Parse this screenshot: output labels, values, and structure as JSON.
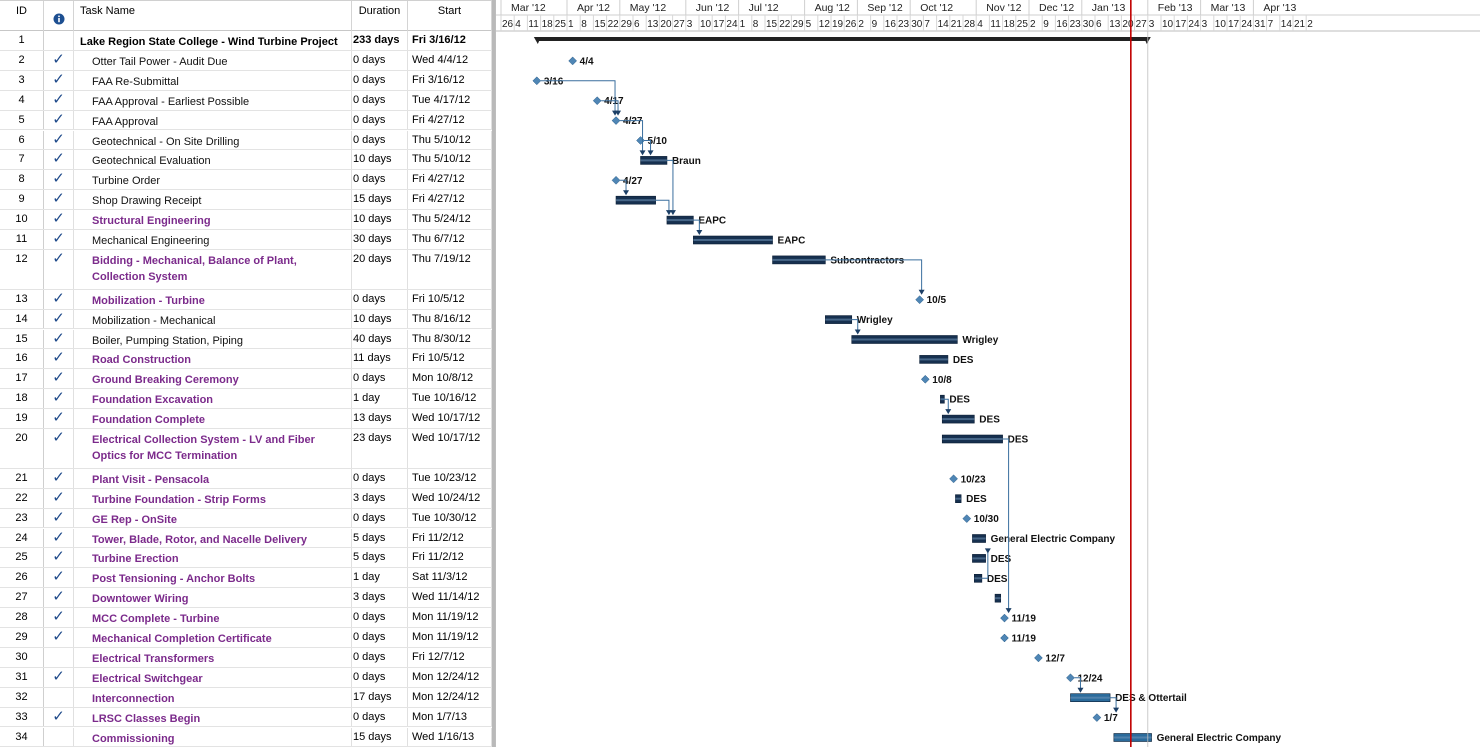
{
  "columns": {
    "id": "ID",
    "indicator_icon": "info-icon",
    "name": "Task Name",
    "duration": "Duration",
    "start": "Start"
  },
  "colors": {
    "bar": "#16304f",
    "bar_light": "#2b6b9b",
    "milestone": "#4f86b5",
    "purple_text": "#7b2a8b",
    "today_line": "#c00000",
    "link": "#3a6f9e"
  },
  "timeline": {
    "today": "2013-01-25",
    "months": [
      {
        "label": "Mar '12",
        "start": "2012-02-26"
      },
      {
        "label": "Apr '12",
        "start": "2012-04-01"
      },
      {
        "label": "May '12",
        "start": "2012-04-29"
      },
      {
        "label": "Jun '12",
        "start": "2012-06-03"
      },
      {
        "label": "Jul '12",
        "start": "2012-07-01"
      },
      {
        "label": "Aug '12",
        "start": "2012-08-05"
      },
      {
        "label": "Sep '12",
        "start": "2012-09-02"
      },
      {
        "label": "Oct '12",
        "start": "2012-09-30"
      },
      {
        "label": "Nov '12",
        "start": "2012-11-04"
      },
      {
        "label": "Dec '12",
        "start": "2012-12-02"
      },
      {
        "label": "Jan '13",
        "start": "2012-12-30"
      },
      {
        "label": "Feb '13",
        "start": "2013-02-03"
      },
      {
        "label": "Mar '13",
        "start": "2013-03-03"
      },
      {
        "label": "Apr '13",
        "start": "2013-03-31"
      }
    ],
    "week_labels": [
      "26",
      "4",
      "11",
      "18",
      "25",
      "1",
      "8",
      "15",
      "22",
      "29",
      "6",
      "13",
      "20",
      "27",
      "3",
      "10",
      "17",
      "24",
      "1",
      "8",
      "15",
      "22",
      "29",
      "5",
      "12",
      "19",
      "26",
      "2",
      "9",
      "16",
      "23",
      "30",
      "7",
      "14",
      "21",
      "28",
      "4",
      "11",
      "18",
      "25",
      "2",
      "9",
      "16",
      "23",
      "30",
      "6",
      "13",
      "20",
      "27",
      "3",
      "10",
      "17",
      "24",
      "3",
      "10",
      "17",
      "24",
      "31",
      "7",
      "14",
      "21",
      "2"
    ]
  },
  "tasks": [
    {
      "id": "1",
      "name": "Lake Region State College - Wind Turbine Project",
      "duration": "233 days",
      "start": "Fri 3/16/12",
      "done": false,
      "summary": true,
      "purple": false,
      "bar": [
        "2012-03-16",
        "2013-02-03"
      ],
      "ms": null,
      "label": ""
    },
    {
      "id": "2",
      "name": "Otter Tail Power - Audit Due",
      "duration": "0 days",
      "start": "Wed 4/4/12",
      "done": true,
      "summary": false,
      "purple": false,
      "bar": null,
      "ms": "2012-04-04",
      "label": "4/4"
    },
    {
      "id": "3",
      "name": "FAA Re-Submittal",
      "duration": "0 days",
      "start": "Fri 3/16/12",
      "done": true,
      "summary": false,
      "purple": false,
      "bar": null,
      "ms": "2012-03-16",
      "label": "3/16"
    },
    {
      "id": "4",
      "name": "FAA Approval - Earliest Possible",
      "duration": "0 days",
      "start": "Tue 4/17/12",
      "done": true,
      "summary": false,
      "purple": false,
      "bar": null,
      "ms": "2012-04-17",
      "label": "4/17"
    },
    {
      "id": "5",
      "name": "FAA Approval",
      "duration": "0 days",
      "start": "Fri 4/27/12",
      "done": true,
      "summary": false,
      "purple": false,
      "bar": null,
      "ms": "2012-04-27",
      "label": "4/27"
    },
    {
      "id": "6",
      "name": "Geotechnical - On Site Drilling",
      "duration": "0 days",
      "start": "Thu 5/10/12",
      "done": true,
      "summary": false,
      "purple": false,
      "bar": null,
      "ms": "2012-05-10",
      "label": "5/10"
    },
    {
      "id": "7",
      "name": "Geotechnical Evaluation",
      "duration": "10 days",
      "start": "Thu 5/10/12",
      "done": true,
      "summary": false,
      "purple": false,
      "bar": [
        "2012-05-10",
        "2012-05-24"
      ],
      "ms": null,
      "label": "Braun"
    },
    {
      "id": "8",
      "name": "Turbine Order",
      "duration": "0 days",
      "start": "Fri 4/27/12",
      "done": true,
      "summary": false,
      "purple": false,
      "bar": null,
      "ms": "2012-04-27",
      "label": "4/27"
    },
    {
      "id": "9",
      "name": "Shop Drawing Receipt",
      "duration": "15 days",
      "start": "Fri 4/27/12",
      "done": true,
      "summary": false,
      "purple": false,
      "bar": [
        "2012-04-27",
        "2012-05-18"
      ],
      "ms": null,
      "label": ""
    },
    {
      "id": "10",
      "name": "Structural Engineering",
      "duration": "10 days",
      "start": "Thu 5/24/12",
      "done": true,
      "summary": false,
      "purple": true,
      "bar": [
        "2012-05-24",
        "2012-06-07"
      ],
      "ms": null,
      "label": "EAPC"
    },
    {
      "id": "11",
      "name": "Mechanical Engineering",
      "duration": "30 days",
      "start": "Thu 6/7/12",
      "done": true,
      "summary": false,
      "purple": false,
      "bar": [
        "2012-06-07",
        "2012-07-19"
      ],
      "ms": null,
      "label": "EAPC"
    },
    {
      "id": "12",
      "name": "Bidding - Mechanical, Balance of Plant, Collection System",
      "duration": "20 days",
      "start": "Thu 7/19/12",
      "done": true,
      "summary": false,
      "purple": true,
      "bar": [
        "2012-07-19",
        "2012-08-16"
      ],
      "ms": null,
      "label": "Subcontractors"
    },
    {
      "id": "13",
      "name": "Mobilization - Turbine",
      "duration": "0 days",
      "start": "Fri 10/5/12",
      "done": true,
      "summary": false,
      "purple": true,
      "bar": null,
      "ms": "2012-10-05",
      "label": "10/5"
    },
    {
      "id": "14",
      "name": "Mobilization - Mechanical",
      "duration": "10 days",
      "start": "Thu 8/16/12",
      "done": true,
      "summary": false,
      "purple": false,
      "bar": [
        "2012-08-16",
        "2012-08-30"
      ],
      "ms": null,
      "label": "Wrigley"
    },
    {
      "id": "15",
      "name": "Boiler, Pumping Station, Piping",
      "duration": "40 days",
      "start": "Thu 8/30/12",
      "done": true,
      "summary": false,
      "purple": false,
      "bar": [
        "2012-08-30",
        "2012-10-25"
      ],
      "ms": null,
      "label": "Wrigley"
    },
    {
      "id": "16",
      "name": "Road Construction",
      "duration": "11 days",
      "start": "Fri 10/5/12",
      "done": true,
      "summary": false,
      "purple": true,
      "bar": [
        "2012-10-05",
        "2012-10-20"
      ],
      "ms": null,
      "label": "DES"
    },
    {
      "id": "17",
      "name": "Ground Breaking Ceremony",
      "duration": "0 days",
      "start": "Mon 10/8/12",
      "done": true,
      "summary": false,
      "purple": true,
      "bar": null,
      "ms": "2012-10-08",
      "label": "10/8"
    },
    {
      "id": "18",
      "name": "Foundation Excavation",
      "duration": "1 day",
      "start": "Tue 10/16/12",
      "done": true,
      "summary": false,
      "purple": true,
      "bar": [
        "2012-10-16",
        "2012-10-17"
      ],
      "ms": null,
      "label": "DES"
    },
    {
      "id": "19",
      "name": "Foundation Complete",
      "duration": "13 days",
      "start": "Wed 10/17/12",
      "done": true,
      "summary": false,
      "purple": true,
      "bar": [
        "2012-10-17",
        "2012-11-03"
      ],
      "ms": null,
      "label": "DES"
    },
    {
      "id": "20",
      "name": "Electrical Collection System - LV and Fiber Optics for MCC Termination",
      "duration": "23 days",
      "start": "Wed 10/17/12",
      "done": true,
      "summary": false,
      "purple": true,
      "bar": [
        "2012-10-17",
        "2012-11-18"
      ],
      "ms": null,
      "label": "DES"
    },
    {
      "id": "21",
      "name": "Plant Visit - Pensacola",
      "duration": "0 days",
      "start": "Tue 10/23/12",
      "done": true,
      "summary": false,
      "purple": true,
      "bar": null,
      "ms": "2012-10-23",
      "label": "10/23"
    },
    {
      "id": "22",
      "name": "Turbine Foundation - Strip Forms",
      "duration": "3 days",
      "start": "Wed 10/24/12",
      "done": true,
      "summary": false,
      "purple": true,
      "bar": [
        "2012-10-24",
        "2012-10-27"
      ],
      "ms": null,
      "label": "DES"
    },
    {
      "id": "23",
      "name": "GE Rep - OnSite",
      "duration": "0 days",
      "start": "Tue 10/30/12",
      "done": true,
      "summary": false,
      "purple": true,
      "bar": null,
      "ms": "2012-10-30",
      "label": "10/30"
    },
    {
      "id": "24",
      "name": "Tower, Blade, Rotor, and Nacelle Delivery",
      "duration": "5 days",
      "start": "Fri 11/2/12",
      "done": true,
      "summary": false,
      "purple": true,
      "bar": [
        "2012-11-02",
        "2012-11-09"
      ],
      "ms": null,
      "label": "General Electric Company"
    },
    {
      "id": "25",
      "name": "Turbine Erection",
      "duration": "5 days",
      "start": "Fri 11/2/12",
      "done": true,
      "summary": false,
      "purple": true,
      "bar": [
        "2012-11-02",
        "2012-11-09"
      ],
      "ms": null,
      "label": "DES"
    },
    {
      "id": "26",
      "name": "Post Tensioning - Anchor Bolts",
      "duration": "1 day",
      "start": "Sat 11/3/12",
      "done": true,
      "summary": false,
      "purple": true,
      "bar": [
        "2012-11-03",
        "2012-11-07"
      ],
      "ms": null,
      "label": "DES"
    },
    {
      "id": "27",
      "name": "Downtower Wiring",
      "duration": "3 days",
      "start": "Wed 11/14/12",
      "done": true,
      "summary": false,
      "purple": true,
      "bar": [
        "2012-11-14",
        "2012-11-17"
      ],
      "ms": null,
      "label": ""
    },
    {
      "id": "28",
      "name": "MCC Complete - Turbine",
      "duration": "0 days",
      "start": "Mon 11/19/12",
      "done": true,
      "summary": false,
      "purple": true,
      "bar": null,
      "ms": "2012-11-19",
      "label": "11/19"
    },
    {
      "id": "29",
      "name": "Mechanical Completion Certificate",
      "duration": "0 days",
      "start": "Mon 11/19/12",
      "done": true,
      "summary": false,
      "purple": true,
      "bar": null,
      "ms": "2012-11-19",
      "label": "11/19"
    },
    {
      "id": "30",
      "name": "Electrical Transformers",
      "duration": "0 days",
      "start": "Fri 12/7/12",
      "done": false,
      "summary": false,
      "purple": true,
      "bar": null,
      "ms": "2012-12-07",
      "label": "12/7"
    },
    {
      "id": "31",
      "name": "Electrical Switchgear",
      "duration": "0 days",
      "start": "Mon 12/24/12",
      "done": true,
      "summary": false,
      "purple": true,
      "bar": null,
      "ms": "2012-12-24",
      "label": "12/24"
    },
    {
      "id": "32",
      "name": "Interconnection",
      "duration": "17 days",
      "start": "Mon 12/24/12",
      "done": false,
      "summary": false,
      "purple": true,
      "bar": [
        "2012-12-24",
        "2013-01-14"
      ],
      "ms": null,
      "label": "DES & Ottertail"
    },
    {
      "id": "33",
      "name": "LRSC Classes Begin",
      "duration": "0 days",
      "start": "Mon 1/7/13",
      "done": true,
      "summary": false,
      "purple": true,
      "bar": null,
      "ms": "2013-01-07",
      "label": "1/7"
    },
    {
      "id": "34",
      "name": "Commissioning",
      "duration": "15 days",
      "start": "Wed 1/16/13",
      "done": false,
      "summary": false,
      "purple": true,
      "bar": [
        "2013-01-16",
        "2013-02-05"
      ],
      "ms": null,
      "label": "General Electric Company"
    }
  ]
}
